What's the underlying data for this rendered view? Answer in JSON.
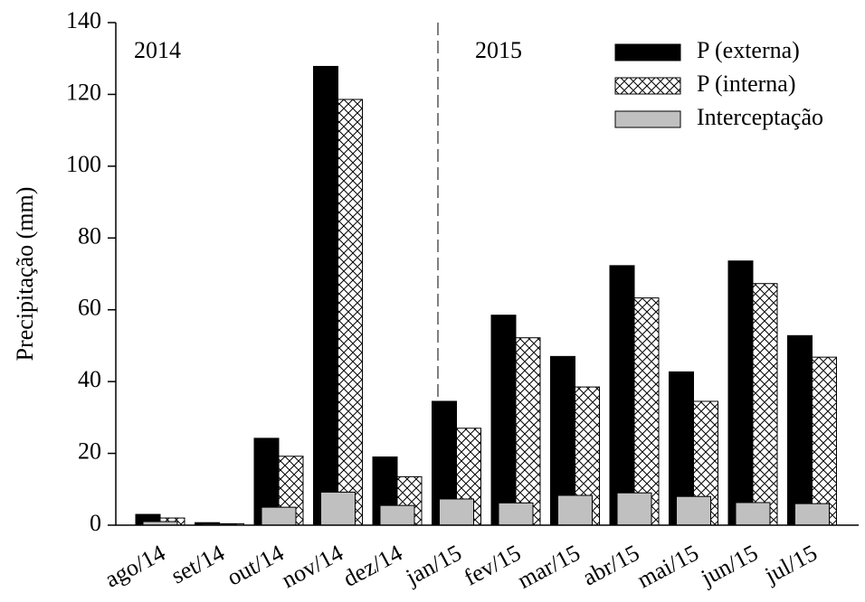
{
  "chart_data": {
    "type": "bar",
    "y_label": "Precipitação (mm)",
    "annotations": [
      "2014",
      "2015"
    ],
    "categories": [
      "ago/14",
      "set/14",
      "out/14",
      "nov/14",
      "dez/14",
      "jan/15",
      "fev/15",
      "mar/15",
      "abr/15",
      "mai/15",
      "jun/15",
      "jul/15"
    ],
    "series": [
      {
        "name": "P (externa)",
        "color": "#000000",
        "values": [
          3,
          0.7,
          24.2,
          127.8,
          19,
          34.5,
          58.5,
          47,
          72.3,
          42.7,
          73.6,
          52.8
        ]
      },
      {
        "name": "P (interna)",
        "color": "#ffffff",
        "hatch": "crosshatch",
        "values": [
          2,
          0.4,
          19.2,
          118.6,
          13.5,
          27,
          52.2,
          38.5,
          63.3,
          34.5,
          67.3,
          46.8
        ]
      },
      {
        "name": "Interceptação",
        "color": "#c0c0c0",
        "values": [
          1,
          0.3,
          5,
          9.2,
          5.5,
          7.3,
          6.2,
          8.3,
          9,
          8,
          6.3,
          6
        ]
      }
    ],
    "ylim": [
      0,
      140
    ],
    "yticks": [
      0,
      20,
      40,
      60,
      80,
      100,
      120,
      140
    ],
    "legend": "upper right"
  }
}
